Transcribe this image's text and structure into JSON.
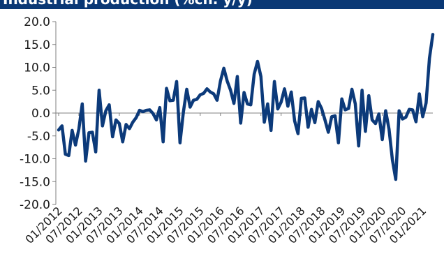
{
  "chart_data": {
    "type": "line",
    "title": "Industrial production (%ch. y/y)",
    "ylim": [
      -20,
      20
    ],
    "y_ticks": [
      20.0,
      15.0,
      10.0,
      5.0,
      0.0,
      -5.0,
      -10.0,
      -15.0,
      -20.0
    ],
    "y_tick_labels": [
      "20.0",
      "15.0",
      "10.0",
      "5.0",
      "0.0",
      "-5.0",
      "-10.0",
      "-15.0",
      "-20.0"
    ],
    "x_tick_labels": [
      "01/2012",
      "07/2012",
      "01/2013",
      "07/2013",
      "01/2014",
      "07/2014",
      "01/2015",
      "07/2015",
      "01/2016",
      "07/2016",
      "01/2017",
      "07/2017",
      "01/2018",
      "07/2018",
      "01/2019",
      "07/2019",
      "01/2020",
      "07/2020",
      "01/2021"
    ],
    "grid": "none",
    "line_color": "#0c3a7a",
    "series": [
      {
        "values": [
          -3.7,
          -2.8,
          -9.0,
          -9.3,
          -3.8,
          -7.0,
          -3.5,
          2.0,
          -10.5,
          -4.3,
          -4.2,
          -8.5,
          5.0,
          -2.8,
          0.5,
          1.8,
          -5.2,
          -1.5,
          -2.3,
          -6.3,
          -2.5,
          -3.4,
          -2.0,
          -1.0,
          0.6,
          0.3,
          0.6,
          0.7,
          -0.1,
          -1.5,
          1.2,
          -6.3,
          5.4,
          2.7,
          2.8,
          6.9,
          -6.5,
          0.2,
          5.2,
          1.3,
          2.8,
          3.0,
          4.0,
          4.3,
          5.3,
          4.6,
          4.2,
          2.8,
          7.0,
          9.8,
          7.0,
          5.0,
          2.1,
          8.0,
          -2.2,
          4.5,
          2.0,
          1.8,
          8.5,
          11.3,
          8.0,
          -2.0,
          2.0,
          -3.8,
          6.9,
          0.9,
          2.4,
          5.3,
          1.5,
          4.6,
          -1.7,
          -4.5,
          3.2,
          3.3,
          -3.1,
          0.8,
          -2.1,
          2.5,
          1.0,
          -1.5,
          -4.2,
          -0.8,
          -0.6,
          -6.5,
          3.1,
          0.7,
          1.0,
          5.2,
          2.0,
          -7.2,
          5.0,
          -4.0,
          3.8,
          -1.5,
          -2.3,
          -0.2,
          -5.8,
          0.5,
          -3.5,
          -10.2,
          -14.5,
          0.5,
          -1.3,
          -0.9,
          0.8,
          0.7,
          -1.9,
          4.2,
          -0.8,
          2.2,
          12.0,
          17.2
        ]
      }
    ]
  }
}
